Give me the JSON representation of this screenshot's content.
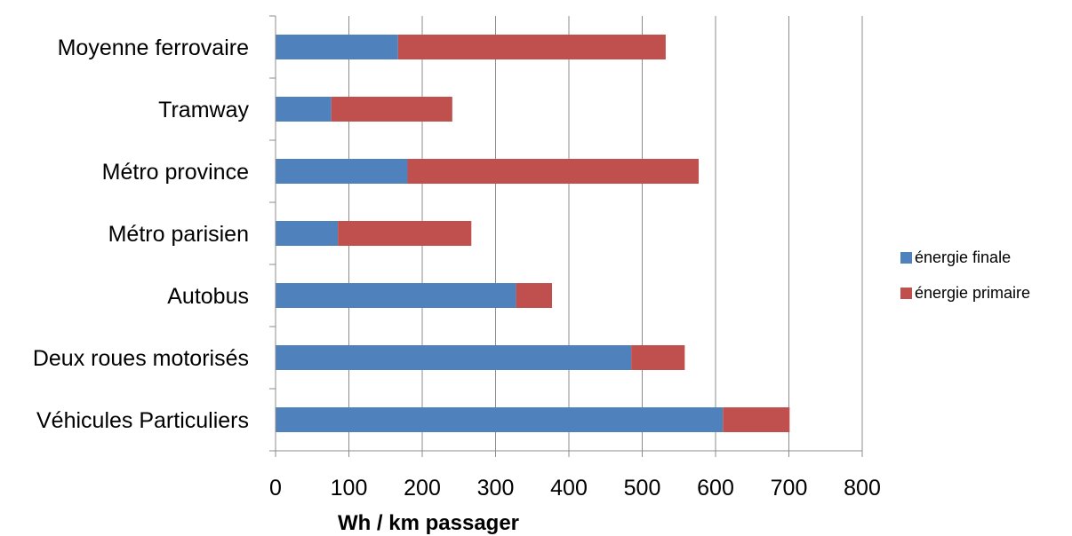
{
  "chart_data": {
    "type": "bar",
    "orientation": "horizontal",
    "stacked": true,
    "categories": [
      "Moyenne ferrovaire",
      "Tramway",
      "Métro province",
      "Métro parisien",
      "Autobus",
      "Deux roues motorisés",
      "Véhicules Particuliers"
    ],
    "series": [
      {
        "name": "énergie finale",
        "color": "#4F81BD",
        "values": [
          167,
          76,
          180,
          85,
          328,
          485,
          610
        ]
      },
      {
        "name": "énergie primaire",
        "color": "#C0504D",
        "values": [
          365,
          165,
          397,
          182,
          49,
          73,
          91
        ]
      }
    ],
    "xlabel": "Wh / km passager",
    "ylabel": "",
    "xlim": [
      0,
      800
    ],
    "xticks": [
      "0",
      "100",
      "200",
      "300",
      "400",
      "500",
      "600",
      "700",
      "800"
    ],
    "grid": "vertical",
    "legend_position": "right"
  }
}
